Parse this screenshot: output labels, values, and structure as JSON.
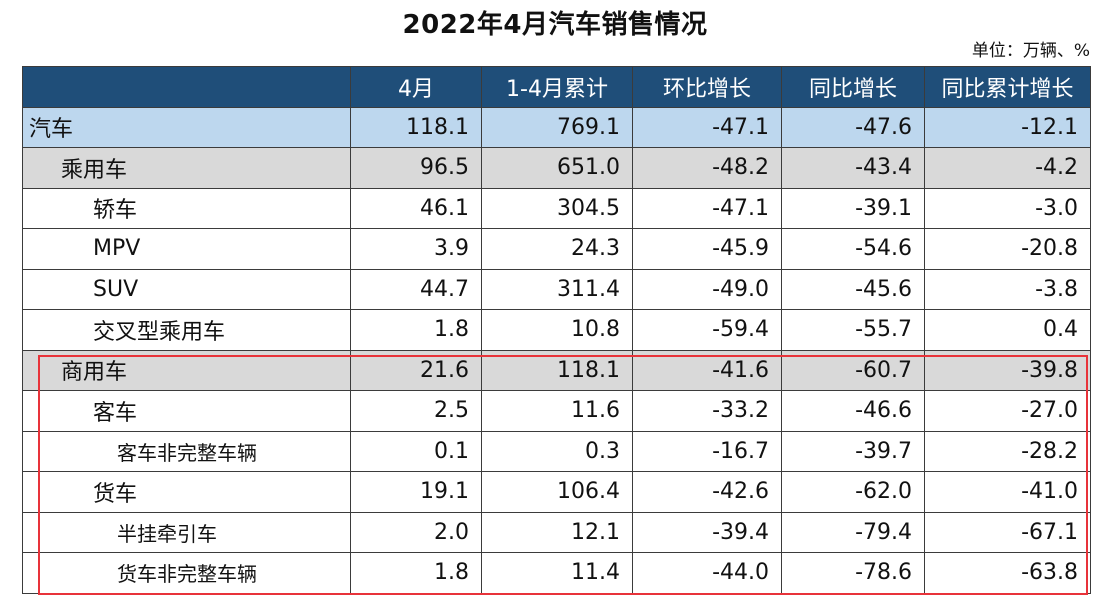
{
  "title": "2022年4月汽车销售情况",
  "unit": "单位：万辆、%",
  "table": {
    "headers": [
      "",
      "4月",
      "1-4月累计",
      "环比增长",
      "同比增长",
      "同比累计增长"
    ],
    "rows": [
      {
        "label": "汽车",
        "level": 0,
        "values": [
          "118.1",
          "769.1",
          "-47.1",
          "-47.6",
          "-12.1"
        ]
      },
      {
        "label": "乘用车",
        "level": 1,
        "values": [
          "96.5",
          "651.0",
          "-48.2",
          "-43.4",
          "-4.2"
        ]
      },
      {
        "label": "轿车",
        "level": 2,
        "values": [
          "46.1",
          "304.5",
          "-47.1",
          "-39.1",
          "-3.0"
        ]
      },
      {
        "label": "MPV",
        "level": 2,
        "values": [
          "3.9",
          "24.3",
          "-45.9",
          "-54.6",
          "-20.8"
        ]
      },
      {
        "label": "SUV",
        "level": 2,
        "values": [
          "44.7",
          "311.4",
          "-49.0",
          "-45.6",
          "-3.8"
        ]
      },
      {
        "label": "交叉型乘用车",
        "level": 2,
        "values": [
          "1.8",
          "10.8",
          "-59.4",
          "-55.7",
          "0.4"
        ]
      },
      {
        "label": "商用车",
        "level": 1,
        "values": [
          "21.6",
          "118.1",
          "-41.6",
          "-60.7",
          "-39.8"
        ]
      },
      {
        "label": "客车",
        "level": 2,
        "values": [
          "2.5",
          "11.6",
          "-33.2",
          "-46.6",
          "-27.0"
        ]
      },
      {
        "label": "客车非完整车辆",
        "level": 3,
        "values": [
          "0.1",
          "0.3",
          "-16.7",
          "-39.7",
          "-28.2"
        ]
      },
      {
        "label": "货车",
        "level": 2,
        "values": [
          "19.1",
          "106.4",
          "-42.6",
          "-62.0",
          "-41.0"
        ]
      },
      {
        "label": "半挂牵引车",
        "level": 3,
        "values": [
          "2.0",
          "12.1",
          "-39.4",
          "-79.4",
          "-67.1"
        ]
      },
      {
        "label": "货车非完整车辆",
        "level": 3,
        "values": [
          "1.8",
          "11.4",
          "-44.0",
          "-78.6",
          "-63.8"
        ]
      }
    ]
  },
  "colors": {
    "header_bg": "#1f4e79",
    "total_row_bg": "#bdd7ee",
    "category_row_bg": "#d9d9d9",
    "highlight_border": "#e8333a"
  }
}
